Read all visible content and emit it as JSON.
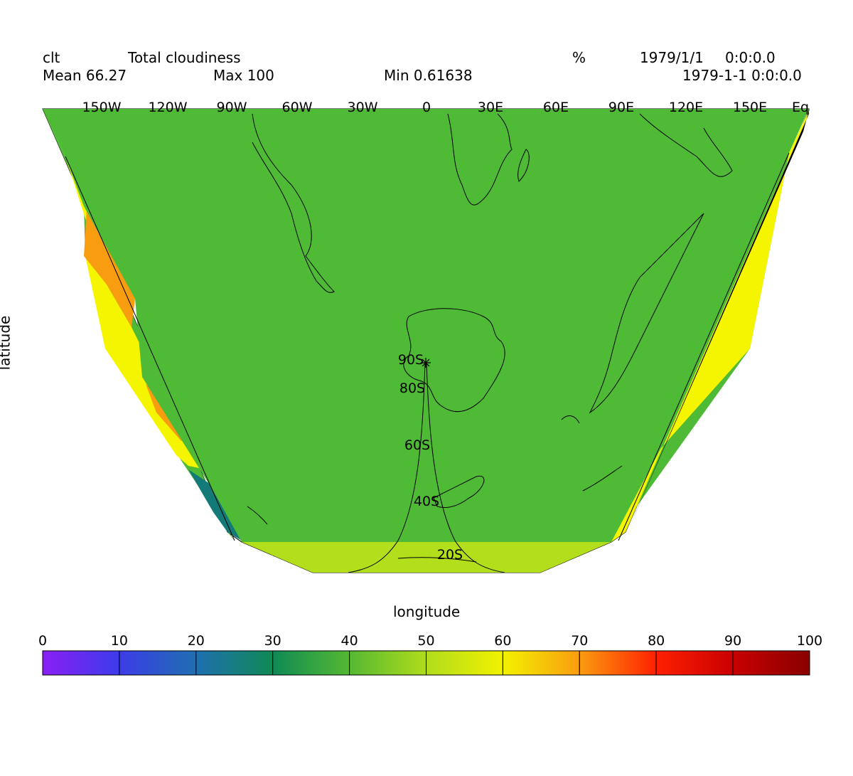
{
  "header": {
    "variable": "clt",
    "long_name": "Total cloudiness",
    "units": "%",
    "date": "1979/1/1",
    "time": "0:0:0.0",
    "timestamp": "1979-1-1 0:0:0.0",
    "mean": "Mean 66.27",
    "max": "Max 100",
    "min": "Min 0.61638"
  },
  "axes": {
    "xlabel": "longitude",
    "ylabel": "latitude",
    "lon_labels": [
      "150W",
      "120W",
      "90W",
      "60W",
      "30W",
      "0",
      "30E",
      "60E",
      "90E",
      "120E",
      "150E",
      "Eq"
    ],
    "lat_labels": [
      "90S",
      "80S",
      "60S",
      "40S",
      "20S"
    ]
  },
  "colorbar": {
    "ticks": [
      "0",
      "10",
      "20",
      "30",
      "40",
      "50",
      "60",
      "70",
      "80",
      "90",
      "100"
    ],
    "colors": [
      "#8a1ff5",
      "#3c3ce8",
      "#1f6fb0",
      "#0f8a55",
      "#54b832",
      "#b0dc1c",
      "#f2f200",
      "#fa9c10",
      "#ff2000",
      "#c80000"
    ]
  },
  "colors": {
    "main_field": "#4fba35",
    "band_low": "#b2de1c",
    "yellow": "#f5f500",
    "orange": "#f89c10",
    "teal": "#137a78"
  }
}
